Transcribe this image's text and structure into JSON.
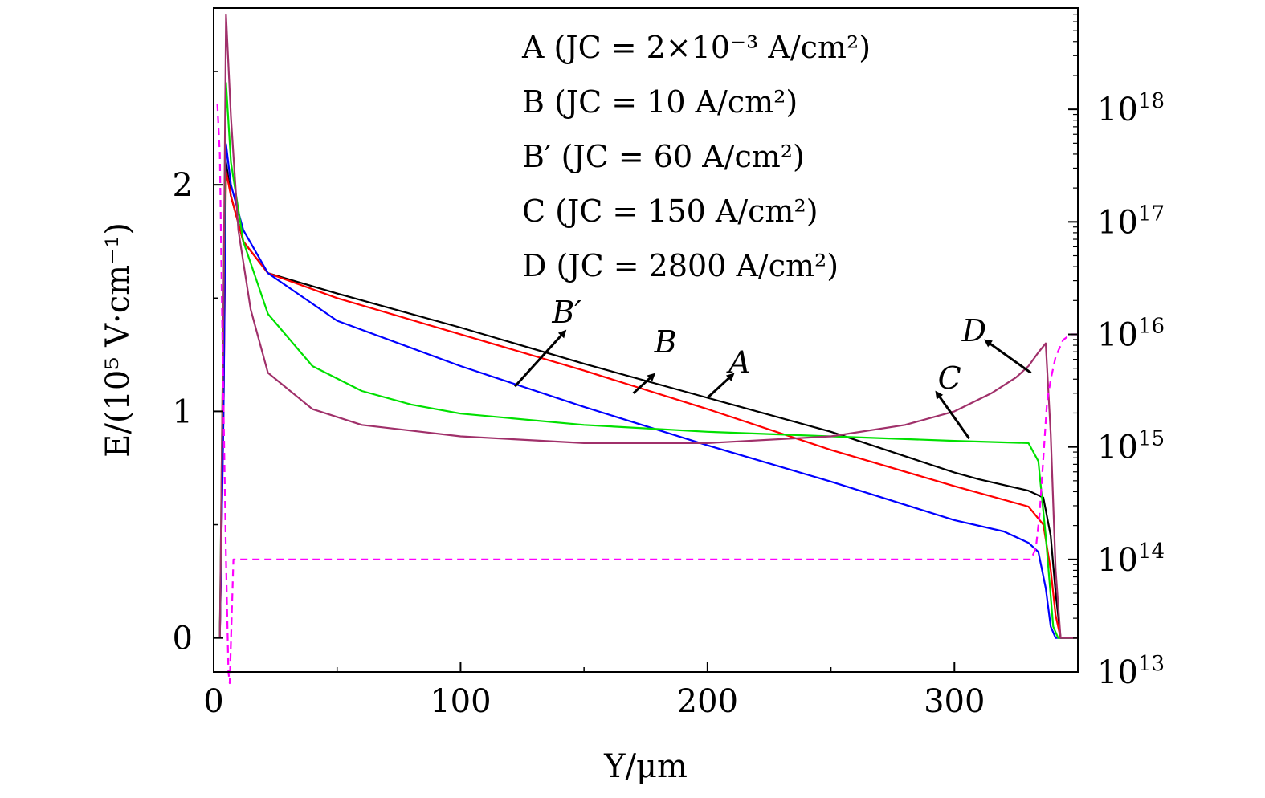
{
  "chart_data": {
    "type": "line",
    "xlabel": "Y/μm",
    "ylabel": "E/(10⁵ V·cm⁻¹)",
    "xlim": [
      0,
      350
    ],
    "ylim": [
      -0.15,
      2.78
    ],
    "y2lim_log10": [
      13,
      18.9
    ],
    "x_ticks": [
      0,
      100,
      200,
      300
    ],
    "x_tick_labels": [
      "0",
      "100",
      "200",
      "300"
    ],
    "y_ticks": [
      0,
      1,
      2
    ],
    "y_tick_labels": [
      "0",
      "1",
      "2"
    ],
    "y2_ticks": [
      13,
      14,
      15,
      16,
      17,
      18
    ],
    "y2_tick_labels": [
      {
        "base": "10",
        "exp": "13"
      },
      {
        "base": "10",
        "exp": "14"
      },
      {
        "base": "10",
        "exp": "15"
      },
      {
        "base": "10",
        "exp": "16"
      },
      {
        "base": "10",
        "exp": "17"
      },
      {
        "base": "10",
        "exp": "18"
      }
    ],
    "legend": [
      "A (JC = 2×10⁻³ A/cm²)",
      "B (JC = 10 A/cm²)",
      "B′ (JC = 60 A/cm²)",
      "C (JC = 150 A/cm²)",
      "D (JC = 2800 A/cm²)"
    ],
    "legend_position": "top-right",
    "series": [
      {
        "name": "A",
        "color": "#000000",
        "x": [
          2.5,
          4,
          5,
          7,
          12,
          22,
          50,
          100,
          150,
          200,
          250,
          300,
          310,
          330,
          336,
          339,
          341,
          343,
          345,
          350
        ],
        "y": [
          0,
          1.2,
          2.1,
          1.95,
          1.75,
          1.61,
          1.52,
          1.37,
          1.21,
          1.06,
          0.91,
          0.73,
          0.7,
          0.65,
          0.62,
          0.45,
          0.2,
          0,
          0,
          0
        ]
      },
      {
        "name": "B",
        "color": "#ff0000",
        "x": [
          2.5,
          4,
          5,
          7,
          12,
          22,
          50,
          100,
          150,
          200,
          250,
          300,
          330,
          336,
          339,
          341,
          343,
          350
        ],
        "y": [
          0,
          1.0,
          2.06,
          1.95,
          1.75,
          1.61,
          1.5,
          1.34,
          1.18,
          1.01,
          0.83,
          0.67,
          0.58,
          0.5,
          0.3,
          0.1,
          0,
          0
        ]
      },
      {
        "name": "B′",
        "color": "#0000ff",
        "x": [
          2.5,
          4,
          5,
          7,
          12,
          22,
          50,
          100,
          150,
          200,
          250,
          300,
          320,
          330,
          334,
          337,
          339,
          341,
          350
        ],
        "y": [
          0,
          1.0,
          2.18,
          2.0,
          1.8,
          1.61,
          1.4,
          1.2,
          1.02,
          0.85,
          0.69,
          0.52,
          0.47,
          0.42,
          0.38,
          0.22,
          0.05,
          0,
          0
        ]
      },
      {
        "name": "C",
        "color": "#00e000",
        "x": [
          2.5,
          4,
          5,
          7,
          12,
          22,
          40,
          60,
          80,
          100,
          150,
          200,
          250,
          300,
          330,
          334,
          337,
          340,
          342,
          350
        ],
        "y": [
          0,
          1.5,
          2.45,
          2.1,
          1.75,
          1.43,
          1.2,
          1.09,
          1.03,
          0.99,
          0.94,
          0.91,
          0.89,
          0.87,
          0.86,
          0.78,
          0.45,
          0.05,
          0,
          0
        ]
      },
      {
        "name": "D",
        "color": "#a0306a",
        "x": [
          2.5,
          4,
          5,
          7,
          10,
          15,
          22,
          40,
          60,
          100,
          150,
          200,
          250,
          280,
          300,
          315,
          325,
          330,
          334,
          337,
          339,
          341,
          343,
          350
        ],
        "y": [
          0,
          1.5,
          2.75,
          2.3,
          1.8,
          1.45,
          1.17,
          1.01,
          0.94,
          0.89,
          0.86,
          0.86,
          0.89,
          0.94,
          1.0,
          1.08,
          1.15,
          1.2,
          1.26,
          1.3,
          0.9,
          0.3,
          0,
          0
        ]
      },
      {
        "name": "",
        "color": "#ff00ff",
        "dashed": true,
        "axis": "right",
        "x": [
          1.5,
          2.5,
          3.5,
          5,
          6,
          6.5,
          8,
          100,
          200,
          300,
          331,
          333,
          334.5,
          336,
          337.5,
          339,
          341,
          344,
          347,
          350
        ],
        "y": [
          18.05,
          17.6,
          16.0,
          14.0,
          13.0,
          12.9,
          14.0,
          14.0,
          14.0,
          14.0,
          14.0,
          14.1,
          14.4,
          14.9,
          15.4,
          15.6,
          15.8,
          15.95,
          16.0,
          16.0
        ]
      }
    ],
    "annotations": [
      {
        "label": "B′",
        "tip": [
          142,
          1.35
        ],
        "tail": [
          122,
          1.11
        ],
        "text_at": [
          143,
          1.44
        ]
      },
      {
        "label": "B",
        "tip": [
          178,
          1.16
        ],
        "tail": [
          170,
          1.08
        ],
        "text_at": [
          183,
          1.31
        ]
      },
      {
        "label": "A",
        "tip": [
          210,
          1.16
        ],
        "tail": [
          200,
          1.06
        ],
        "text_at": [
          213,
          1.22
        ]
      },
      {
        "label": "C",
        "tip": [
          293,
          1.08
        ],
        "tail": [
          306,
          0.88
        ],
        "text_at": [
          298,
          1.15
        ]
      },
      {
        "label": "D",
        "tip": [
          313,
          1.31
        ],
        "tail": [
          331,
          1.17
        ],
        "text_at": [
          308,
          1.36
        ]
      }
    ]
  }
}
